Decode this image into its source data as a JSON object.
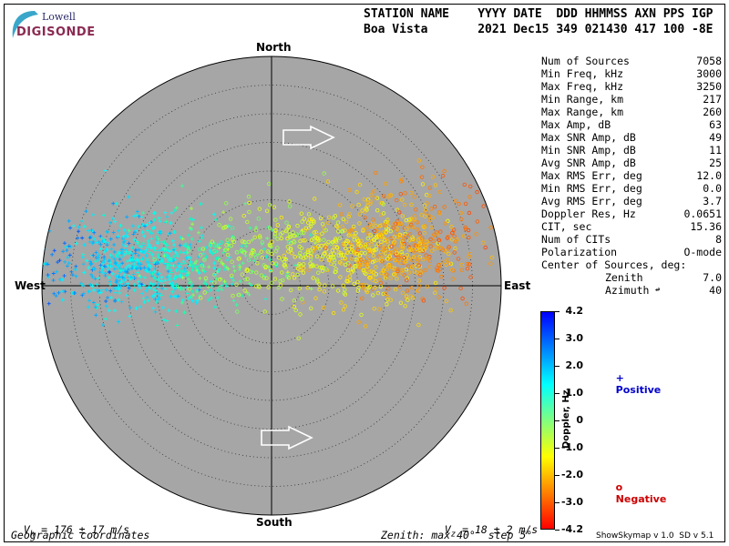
{
  "logo": {
    "line1": "Lowell",
    "line2": "DIGISONDE"
  },
  "header": {
    "line1": "STATION NAME    YYYY DATE  DDD HHMMSS AXN PPS IGP",
    "line2": "Boa Vista       2021 Dec15 349 021430 417 100 -8E"
  },
  "directions": {
    "north": "North",
    "south": "South",
    "east": "East",
    "west": "West"
  },
  "stats": [
    {
      "k": "Num of Sources",
      "v": "7058"
    },
    {
      "k": "Min Freq, kHz",
      "v": "3000"
    },
    {
      "k": "Max Freq, kHz",
      "v": "3250"
    },
    {
      "k": "Min Range, km",
      "v": "217"
    },
    {
      "k": "Max Range, km",
      "v": "260"
    },
    {
      "k": "Max Amp, dB",
      "v": "63"
    },
    {
      "k": "Max SNR Amp, dB",
      "v": "49"
    },
    {
      "k": "Min SNR Amp, dB",
      "v": "11"
    },
    {
      "k": "Avg SNR Amp, dB",
      "v": "25"
    },
    {
      "k": "Max RMS Err, deg",
      "v": "12.0"
    },
    {
      "k": "Min RMS Err, deg",
      "v": "0.0"
    },
    {
      "k": "Avg RMS Err, deg",
      "v": "3.7"
    },
    {
      "k": "Doppler Res, Hz",
      "v": "0.0651"
    },
    {
      "k": "CIT, sec",
      "v": "15.36"
    },
    {
      "k": "Num of CITs",
      "v": "8"
    },
    {
      "k": "Polarization",
      "v": "O-mode"
    },
    {
      "k": "Center of Sources, deg:",
      "v": ""
    }
  ],
  "center": {
    "zenith_label": "Zenith",
    "zenith_value": "7.0",
    "azimuth_label": "Azimuth",
    "azimuth_value": "40",
    "azimuth_arrow": "↫"
  },
  "colorbar": {
    "ticks": [
      "4.2",
      "3.0",
      "2.0",
      "1.0",
      "0",
      "-1.0",
      "-2.0",
      "-3.0",
      "-4.2"
    ],
    "label": "Doppler, Hz",
    "colors": [
      "#0000ff",
      "#0080ff",
      "#00ffff",
      "#80ff80",
      "#ffff00",
      "#ff8000",
      "#ff0000"
    ]
  },
  "legend": {
    "positive_symbol": "+",
    "positive_label": "Positive",
    "positive_color": "#0000cc",
    "negative_symbol": "o",
    "negative_label": "Negative",
    "negative_color": "#cc0000"
  },
  "footer": {
    "vh_main": "V",
    "vh_sub": "h",
    "vh_rest": " = 176 ± 17 m/s",
    "vz_main": "V",
    "vz_sub": "z",
    "vz_rest": " = 18 ± 2 m/s",
    "coords": "Geographic coordinates",
    "zenith": "Zenith: max 40°  step 5°",
    "version": "ShowSkymap v 1.0  SD v 5.1"
  },
  "chart_data": {
    "type": "scatter",
    "title": "",
    "zenith_max_deg": 40,
    "zenith_step_deg": 5,
    "coordinates": "polar (zenith, azimuth)",
    "color_scale": {
      "quantity": "Doppler, Hz",
      "min": -4.2,
      "max": 4.2
    },
    "series": [
      {
        "name": "Positive",
        "marker": "+",
        "clusters": [
          {
            "azimuth_deg": 278,
            "zenith_deg": 25,
            "doppler_hz": 1.3,
            "count": 2400
          },
          {
            "azimuth_deg": 290,
            "zenith_deg": 13,
            "doppler_hz": 0.4,
            "count": 900
          }
        ]
      },
      {
        "name": "Negative",
        "marker": "o",
        "clusters": [
          {
            "azimuth_deg": 75,
            "zenith_deg": 20,
            "doppler_hz": -0.8,
            "count": 2000
          },
          {
            "azimuth_deg": 65,
            "zenith_deg": 27,
            "doppler_hz": -1.0,
            "count": 700
          },
          {
            "azimuth_deg": 20,
            "zenith_deg": 6,
            "doppler_hz": -0.3,
            "count": 1058
          }
        ]
      }
    ]
  }
}
